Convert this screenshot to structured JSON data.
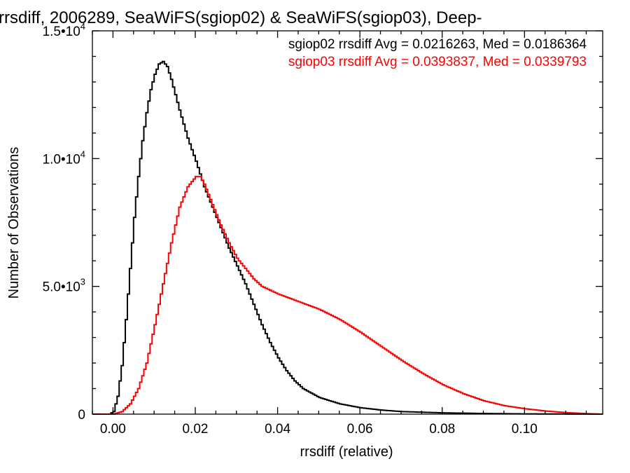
{
  "chart_data": {
    "type": "line",
    "title": "rrsdiff, 2006289, SeaWiFS(sgiop02) & SeaWiFS(sgiop03), Deep-",
    "xlabel": "rrsdiff (relative)",
    "ylabel": "Number of Observations",
    "xlim": [
      -0.005,
      0.119
    ],
    "ylim": [
      0,
      15000
    ],
    "x_ticks": [
      {
        "value": 0.0,
        "label": "0.00"
      },
      {
        "value": 0.02,
        "label": "0.02"
      },
      {
        "value": 0.04,
        "label": "0.04"
      },
      {
        "value": 0.06,
        "label": "0.06"
      },
      {
        "value": 0.08,
        "label": "0.08"
      },
      {
        "value": 0.1,
        "label": "0.10"
      }
    ],
    "y_ticks": [
      {
        "value": 0,
        "mantissa": "0",
        "exponent": ""
      },
      {
        "value": 5000,
        "mantissa": "5.0•10",
        "exponent": "3"
      },
      {
        "value": 10000,
        "mantissa": "1.0•10",
        "exponent": "4"
      },
      {
        "value": 15000,
        "mantissa": "1.5•10",
        "exponent": "4"
      }
    ],
    "grid": false,
    "legend_position": "top-right",
    "series": [
      {
        "name": "sgiop02 rrsdiff Avg = 0.0216263, Med = 0.0186364",
        "color": "#000000",
        "x": [
          -0.005,
          -0.001,
          0.0,
          0.001,
          0.002,
          0.003,
          0.004,
          0.005,
          0.006,
          0.007,
          0.008,
          0.009,
          0.01,
          0.011,
          0.012,
          0.013,
          0.014,
          0.015,
          0.016,
          0.018,
          0.02,
          0.022,
          0.024,
          0.026,
          0.028,
          0.03,
          0.032,
          0.034,
          0.036,
          0.038,
          0.04,
          0.042,
          0.044,
          0.046,
          0.05,
          0.055,
          0.06,
          0.065,
          0.07,
          0.08,
          0.09,
          0.1,
          0.11,
          0.119
        ],
        "values": [
          0,
          0,
          100,
          700,
          1900,
          3700,
          5700,
          7700,
          9300,
          10700,
          11800,
          12700,
          13300,
          13700,
          13800,
          13600,
          13100,
          12500,
          11900,
          10800,
          9900,
          8900,
          8100,
          7300,
          6500,
          5800,
          5100,
          4300,
          3500,
          2800,
          2200,
          1700,
          1300,
          1000,
          650,
          400,
          250,
          160,
          100,
          50,
          25,
          10,
          5,
          0
        ]
      },
      {
        "name": "sgiop03 rrsdiff Avg = 0.0393837, Med = 0.0339793",
        "color": "#ff0000",
        "x": [
          -0.005,
          0.0,
          0.002,
          0.004,
          0.006,
          0.008,
          0.01,
          0.012,
          0.014,
          0.016,
          0.018,
          0.02,
          0.021,
          0.022,
          0.024,
          0.026,
          0.028,
          0.03,
          0.032,
          0.034,
          0.036,
          0.04,
          0.045,
          0.05,
          0.055,
          0.06,
          0.065,
          0.07,
          0.075,
          0.08,
          0.085,
          0.09,
          0.095,
          0.1,
          0.105,
          0.11,
          0.115,
          0.119
        ],
        "values": [
          0,
          0,
          100,
          400,
          1000,
          2000,
          3500,
          5100,
          6700,
          8100,
          8900,
          9300,
          9300,
          9000,
          8200,
          7400,
          6700,
          6100,
          5700,
          5300,
          5000,
          4700,
          4400,
          4100,
          3700,
          3200,
          2650,
          2100,
          1600,
          1150,
          800,
          520,
          330,
          210,
          120,
          60,
          20,
          0
        ]
      }
    ]
  }
}
